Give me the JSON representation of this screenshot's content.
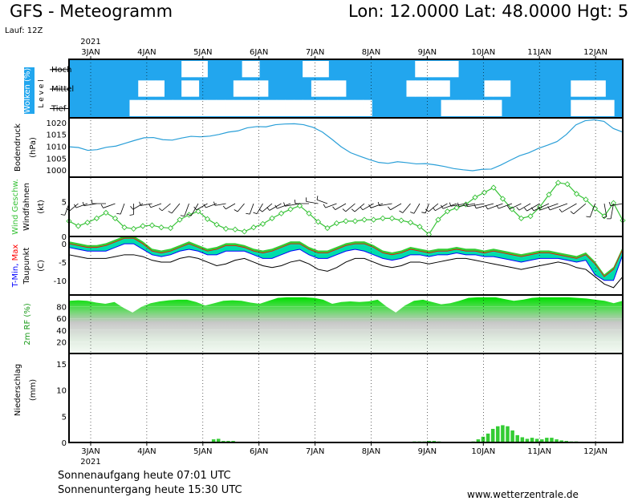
{
  "header": {
    "title": "GFS - Meteogramm",
    "location": "Lon: 12.0000  Lat: 48.0000  Hgt: 5",
    "run": "Lauf: 12Z"
  },
  "footer": {
    "sunrise": "Sonnenaufgang heute 07:01 UTC",
    "sunset": "Sonnenuntergang heute 15:30 UTC",
    "website": "www.wetterzentrale.de"
  },
  "colors": {
    "cloud": "#22a6ee",
    "pressure": "#2a9fd8",
    "wind": "#36c236",
    "tmin": "#0000ff",
    "tmax": "#ff0000",
    "dewpoint": "#000000",
    "band": "#00ddaa",
    "humidity_top": "#00e000",
    "precip": "#33cc33"
  },
  "chart_data": [
    {
      "type": "heatmap",
      "ylabel": "Wolken (%)",
      "side_label": "L e v e l",
      "rows": [
        "Hoch",
        "Mittel",
        "Tief"
      ],
      "cover_high": [
        1,
        1,
        1,
        1,
        1,
        1,
        1,
        1,
        1,
        1,
        1,
        1,
        1,
        0,
        0,
        0,
        1,
        1,
        1,
        1,
        0,
        0,
        1,
        1,
        1,
        1,
        1,
        0,
        0,
        0,
        1,
        1,
        1,
        1,
        1,
        1,
        1,
        1,
        1,
        1,
        0,
        0,
        0,
        0,
        0,
        1,
        1,
        1,
        1,
        1,
        1,
        1,
        1,
        1,
        1,
        1,
        1,
        1,
        1,
        1,
        1,
        1,
        1,
        1
      ],
      "cover_mid": [
        1,
        1,
        1,
        1,
        1,
        1,
        1,
        1,
        0,
        0,
        0,
        1,
        1,
        0,
        0,
        1,
        1,
        1,
        1,
        0,
        0,
        0,
        0,
        1,
        1,
        1,
        1,
        1,
        0,
        0,
        0,
        0,
        1,
        1,
        1,
        1,
        1,
        1,
        1,
        0,
        0,
        0,
        0,
        0,
        1,
        1,
        1,
        1,
        0,
        0,
        0,
        1,
        1,
        1,
        1,
        1,
        1,
        1,
        0,
        0,
        0,
        0,
        1,
        1
      ],
      "cover_low": [
        1,
        1,
        1,
        1,
        1,
        1,
        1,
        0,
        0,
        0,
        0,
        0,
        0,
        0,
        0,
        0,
        0,
        0,
        0,
        0,
        0,
        0,
        0,
        0,
        0,
        0,
        0,
        0,
        0,
        0,
        0,
        0,
        0,
        0,
        0,
        1,
        1,
        1,
        1,
        1,
        1,
        1,
        1,
        0,
        0,
        0,
        0,
        0,
        0,
        0,
        1,
        1,
        1,
        1,
        1,
        1,
        1,
        1,
        0,
        0,
        0,
        0,
        0,
        1
      ]
    },
    {
      "type": "line",
      "ylabel": "Bodendruck (hPa)",
      "ylim": [
        997,
        1022
      ],
      "yticks": [
        1000,
        1005,
        1010,
        1015,
        1020
      ],
      "series": [
        {
          "values": [
            1009.8,
            1009.5,
            1008.3,
            1008.6,
            1009.6,
            1010.1,
            1011.3,
            1012.5,
            1013.6,
            1013.7,
            1012.8,
            1012.6,
            1013.5,
            1014.2,
            1014.0,
            1014.3,
            1015.0,
            1016.0,
            1016.5,
            1017.8,
            1018.3,
            1018.2,
            1019.1,
            1019.4,
            1019.5,
            1019.1,
            1018.0,
            1016.0,
            1013.0,
            1009.8,
            1007.3,
            1005.8,
            1004.4,
            1003.2,
            1002.8,
            1003.5,
            1003.1,
            1002.6,
            1002.7,
            1002.2,
            1001.5,
            1000.6,
            1000.1,
            999.7,
            1000.3,
            1000.4,
            1002.1,
            1004.1,
            1006.0,
            1007.3,
            1009.1,
            1010.5,
            1012.0,
            1015.0,
            1019.0,
            1020.8,
            1021.2,
            1020.5,
            1017.5,
            1016.0
          ]
        }
      ]
    },
    {
      "type": "line",
      "ylabel": "Wind Geschw. (kt)",
      "ylabel2": "Windfahnen",
      "ylim": [
        0,
        8.5
      ],
      "yticks": [
        0,
        5
      ],
      "series": [
        {
          "values": [
            2.2,
            1.5,
            2.0,
            2.6,
            3.4,
            2.6,
            1.3,
            1.1,
            1.5,
            1.6,
            1.3,
            1.2,
            2.4,
            3.1,
            3.6,
            2.5,
            1.7,
            1.1,
            1.0,
            0.7,
            1.3,
            1.8,
            2.6,
            3.3,
            3.9,
            4.4,
            3.3,
            2.1,
            1.2,
            1.9,
            2.2,
            2.2,
            2.4,
            2.4,
            2.6,
            2.6,
            2.3,
            2.0,
            1.4,
            0.3,
            2.4,
            3.6,
            4.1,
            4.6,
            5.6,
            6.3,
            7.0,
            5.4,
            3.9,
            2.6,
            2.9,
            4.2,
            6.0,
            7.7,
            7.5,
            6.1,
            5.3,
            4.0,
            2.9,
            4.8,
            2.3
          ]
        }
      ],
      "barb_directions_deg": [
        200,
        230,
        250,
        260,
        270,
        250,
        200,
        180,
        240,
        260,
        250,
        230,
        220,
        200,
        210,
        240,
        250,
        260,
        240,
        220,
        200,
        210,
        230,
        240,
        250,
        260,
        270,
        280,
        290,
        250,
        240,
        230,
        230,
        240,
        250,
        260,
        240,
        220,
        210,
        200,
        230,
        240,
        250,
        260,
        260,
        260,
        255,
        250,
        250,
        245,
        240,
        240,
        245,
        250,
        250,
        240,
        230,
        200,
        170,
        190,
        260
      ]
    },
    {
      "type": "area",
      "ylabel": "T-Min, Max",
      "ylabel2": "Taupunkt (C)",
      "ylim": [
        -14,
        2
      ],
      "yticks": [
        -10,
        -5,
        0
      ],
      "tmax": [
        0,
        -0.5,
        -1,
        -1,
        -0.5,
        0.5,
        1.5,
        1.5,
        0,
        -2,
        -2.5,
        -2,
        -1,
        0,
        -1,
        -2,
        -1.5,
        -0.5,
        -0.5,
        -1,
        -2,
        -2.5,
        -2,
        -1,
        0,
        0,
        -1.5,
        -2.5,
        -2.5,
        -1.5,
        -0.5,
        0,
        0,
        -1,
        -2.5,
        -3,
        -2.5,
        -1.5,
        -2,
        -2.5,
        -2,
        -2,
        -1.5,
        -2,
        -2,
        -2.5,
        -2,
        -2.5,
        -3,
        -3.5,
        -3,
        -2.5,
        -2.5,
        -3,
        -3.5,
        -4,
        -3,
        -5.5,
        -9,
        -7,
        -1.5
      ],
      "tmin": [
        -1,
        -1.5,
        -2,
        -2,
        -2,
        -1,
        0,
        0,
        -1.5,
        -3,
        -3.5,
        -3,
        -2,
        -1.5,
        -2,
        -3,
        -3,
        -2,
        -2,
        -2,
        -3,
        -4,
        -4,
        -3,
        -2,
        -1.5,
        -3,
        -4,
        -4,
        -3,
        -2,
        -1.5,
        -2,
        -3,
        -4,
        -4.5,
        -4,
        -3,
        -3,
        -3.5,
        -3,
        -3,
        -2.5,
        -3,
        -3,
        -3.5,
        -3.5,
        -4,
        -4.5,
        -5,
        -4.5,
        -4,
        -4,
        -4,
        -4.5,
        -5,
        -4.5,
        -8.5,
        -10,
        -10,
        -3
      ],
      "dewpoint": [
        -3,
        -3.5,
        -4,
        -4,
        -4,
        -3.5,
        -3,
        -3,
        -3.5,
        -4.5,
        -5,
        -5,
        -4,
        -3.5,
        -4,
        -5,
        -6,
        -5.5,
        -4.5,
        -4,
        -5,
        -6,
        -6.5,
        -6,
        -5,
        -4.5,
        -5.5,
        -7,
        -7.5,
        -6.5,
        -5,
        -4,
        -4,
        -5,
        -6,
        -6.5,
        -6,
        -5,
        -5,
        -5.5,
        -5,
        -4.5,
        -4,
        -4,
        -4.5,
        -5,
        -5.5,
        -6,
        -6.5,
        -7,
        -6.5,
        -6,
        -5.5,
        -5,
        -5.5,
        -6.5,
        -7,
        -9,
        -11,
        -12,
        -9
      ]
    },
    {
      "type": "area",
      "ylabel": "2m RF (%)",
      "ylim": [
        0,
        100
      ],
      "yticks": [
        20,
        40,
        60,
        80
      ],
      "values": [
        90,
        91,
        90,
        87,
        85,
        88,
        78,
        70,
        80,
        86,
        89,
        91,
        92,
        92,
        88,
        82,
        86,
        90,
        91,
        90,
        87,
        85,
        90,
        95,
        96,
        96,
        96,
        95,
        92,
        85,
        88,
        89,
        88,
        89,
        92,
        80,
        70,
        82,
        90,
        92,
        88,
        84,
        86,
        90,
        95,
        96,
        96,
        96,
        93,
        90,
        92,
        95,
        96,
        96,
        96,
        96,
        95,
        94,
        92,
        90,
        86,
        90
      ]
    },
    {
      "type": "bar",
      "ylabel": "Niederschlag (mm)",
      "ylim": [
        0,
        17
      ],
      "yticks": [
        0,
        5,
        10,
        15
      ],
      "values": [
        0,
        0,
        0,
        0,
        0,
        0,
        0,
        0,
        0,
        0,
        0,
        0,
        0,
        0,
        0,
        0,
        0,
        0,
        0,
        0,
        0,
        0,
        0,
        0,
        0,
        0,
        0,
        0,
        0.1,
        0.6,
        0.7,
        0.3,
        0.3,
        0.3,
        0,
        0,
        0,
        0,
        0,
        0,
        0,
        0,
        0,
        0,
        0,
        0,
        0,
        0,
        0,
        0,
        0,
        0,
        0,
        0,
        0,
        0,
        0,
        0,
        0,
        0,
        0,
        0,
        0,
        0,
        0,
        0,
        0,
        0,
        0,
        0,
        0.2,
        0.2,
        0.2,
        0.3,
        0.3,
        0.2,
        0.1,
        0,
        0,
        0,
        0,
        0,
        0.2,
        0.6,
        1.1,
        1.7,
        2.6,
        3.1,
        3.3,
        3.1,
        2.3,
        1.4,
        1.0,
        0.7,
        0.9,
        0.7,
        0.6,
        0.9,
        0.9,
        0.6,
        0.4,
        0.3,
        0.2,
        0.2,
        0.1,
        0.1,
        0.1,
        0.1,
        0,
        0,
        0,
        0,
        0
      ]
    }
  ],
  "x_axis": {
    "ticks": [
      "3JAN",
      "4JAN",
      "5JAN",
      "6JAN",
      "7JAN",
      "8JAN",
      "9JAN",
      "10JAN",
      "11JAN",
      "12JAN"
    ],
    "year_label": "2021"
  }
}
